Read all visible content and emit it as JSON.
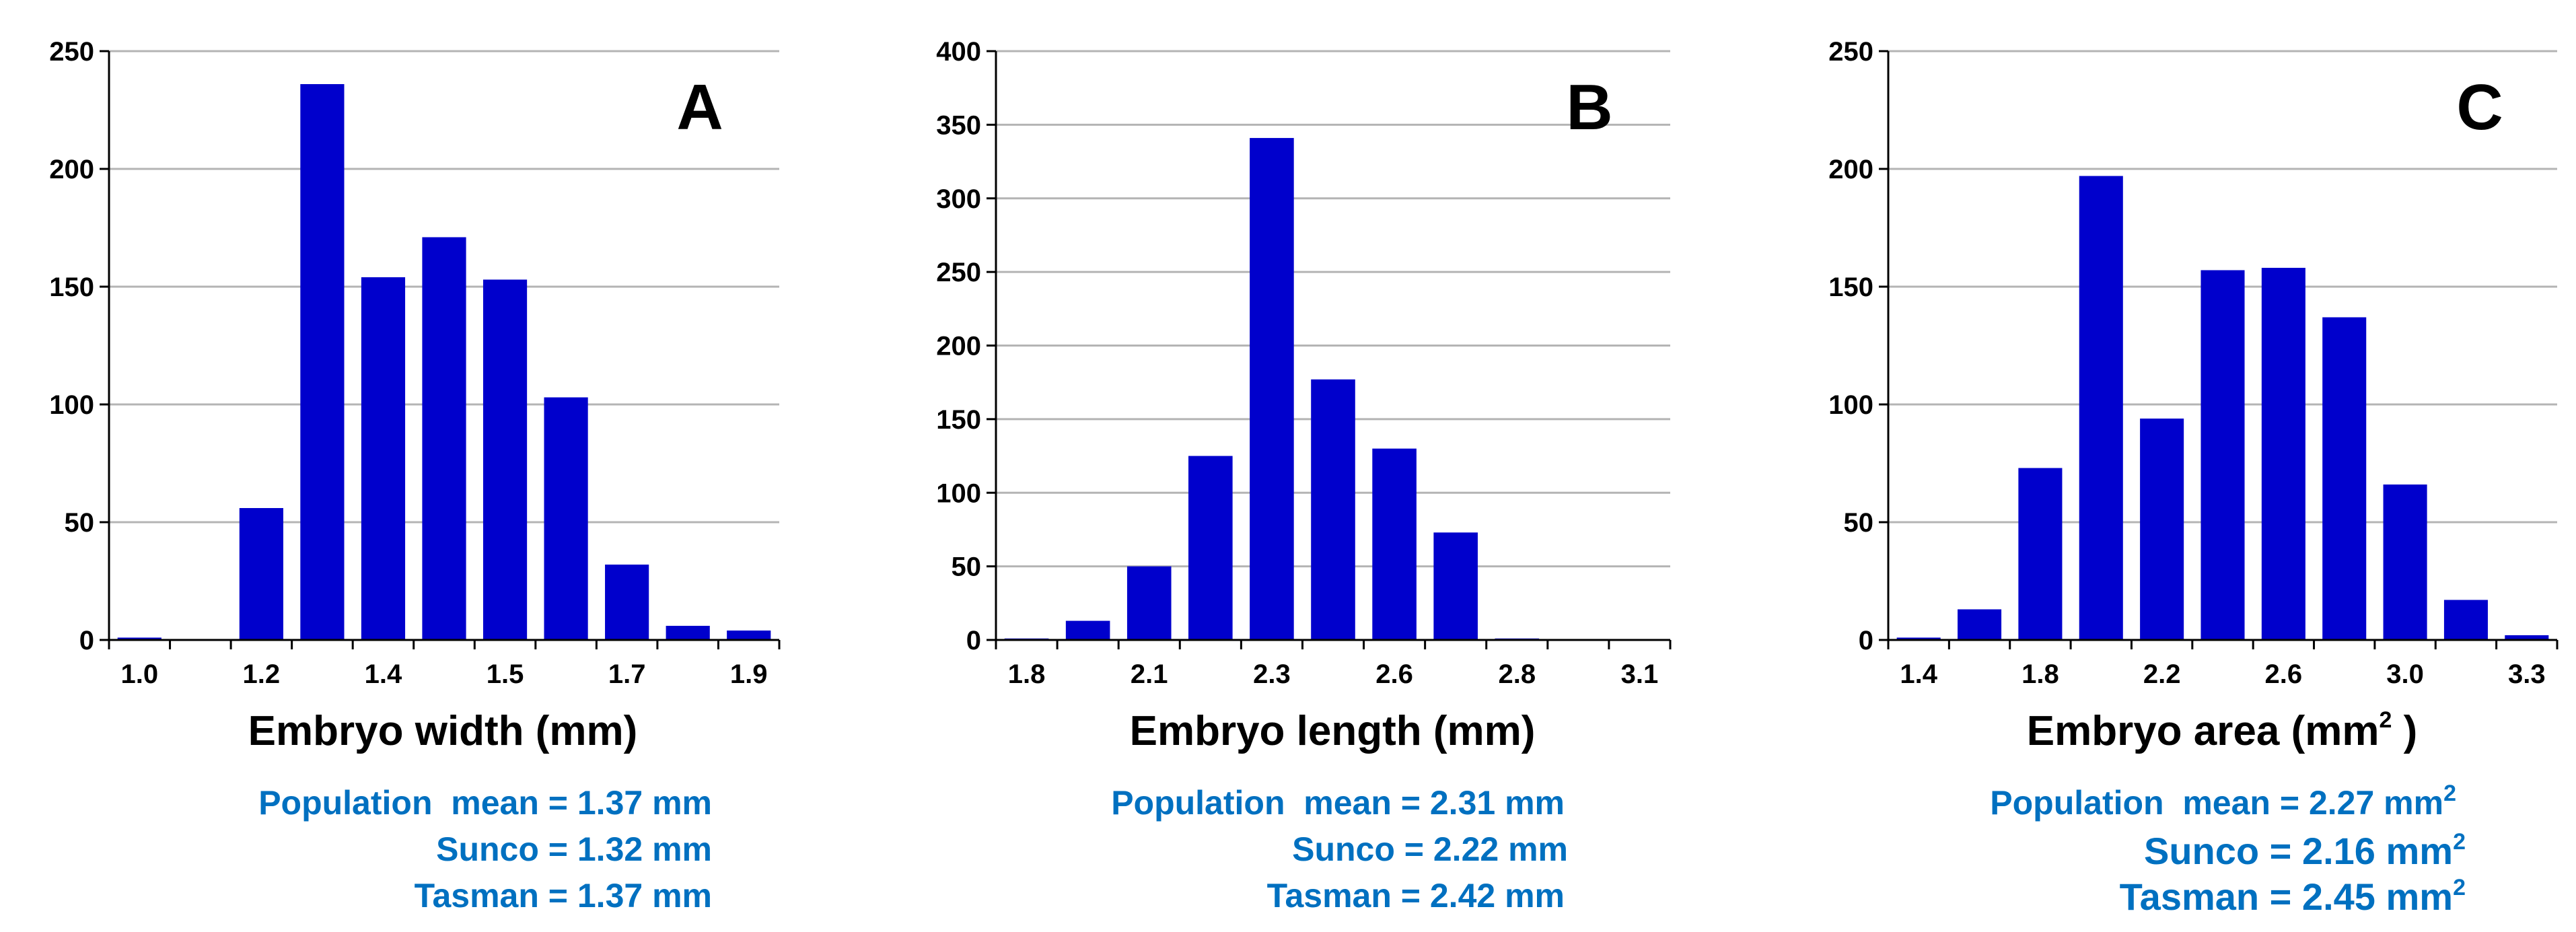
{
  "chart_data": [
    {
      "type": "bar",
      "panel_label": "A",
      "ylim": [
        0,
        250
      ],
      "yticks": [
        0,
        50,
        100,
        150,
        200,
        250
      ],
      "xtick_labels": [
        "1.0",
        "1.2",
        "1.4",
        "1.5",
        "1.7",
        "1.9"
      ],
      "xlabel": "Embryo width (mm)",
      "values": [
        1,
        0,
        56,
        236,
        154,
        171,
        153,
        103,
        32,
        6,
        4
      ],
      "bar_color": "#0000cc",
      "grid": true,
      "stats": {
        "population": "Population  mean = 1.37 mm",
        "sunco": "Sunco = 1.32 mm",
        "tasman": "Tasman = 1.37 mm"
      }
    },
    {
      "type": "bar",
      "panel_label": "B",
      "ylim": [
        0,
        400
      ],
      "yticks": [
        0,
        50,
        100,
        150,
        200,
        250,
        300,
        350,
        400
      ],
      "xtick_labels": [
        "1.8",
        "2.1",
        "2.3",
        "2.6",
        "2.8",
        "3.1"
      ],
      "xlabel": "Embryo length (mm)",
      "values": [
        1,
        13,
        50,
        125,
        341,
        177,
        130,
        73,
        1,
        0,
        0
      ],
      "bar_color": "#0000cc",
      "grid": true,
      "stats": {
        "population": "Population  mean = 2.31 mm",
        "sunco": "Sunco = 2.22 mm",
        "tasman": "Tasman = 2.42 mm"
      }
    },
    {
      "type": "bar",
      "panel_label": "C",
      "ylim": [
        0,
        250
      ],
      "yticks": [
        0,
        50,
        100,
        150,
        200,
        250
      ],
      "xtick_labels": [
        "1.4",
        "1.8",
        "2.2",
        "2.6",
        "3.0",
        "3.3"
      ],
      "xlabel": "Embryo area (mm",
      "xlabel_sup": "2",
      "xlabel_suffix": " )",
      "values": [
        1,
        13,
        73,
        197,
        94,
        157,
        158,
        137,
        66,
        17,
        2
      ],
      "bar_color": "#0000cc",
      "grid": true,
      "stats": {
        "population": "Population  mean = 2.27 mm",
        "sunco": "Sunco = 2.16 mm",
        "tasman": "Tasman = 2.45 mm",
        "unit_sup": "2"
      }
    }
  ],
  "colors": {
    "bar": "#0000cc",
    "stats_text": "#0070c0",
    "grid": "#b4b4b4",
    "axis": "#000000"
  }
}
